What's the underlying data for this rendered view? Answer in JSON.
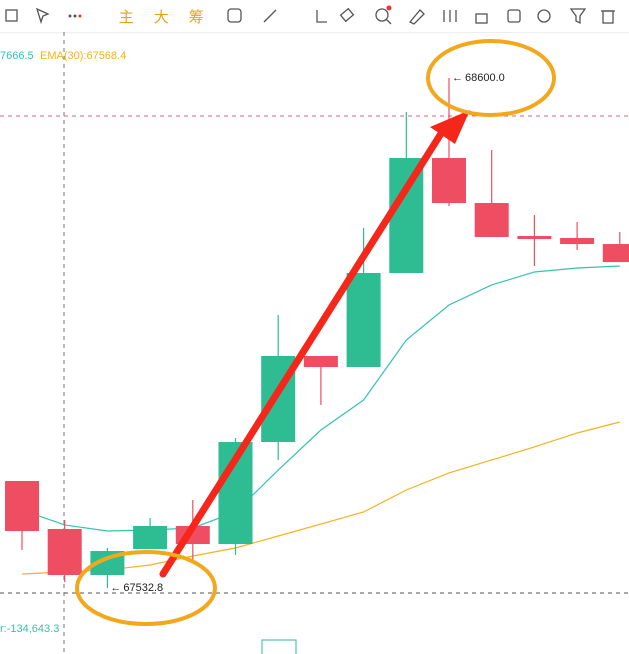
{
  "toolbar": {
    "labels": [
      "主",
      "大",
      "筹"
    ]
  },
  "chart_data": {
    "type": "candlestick",
    "categories": [
      null,
      null,
      null,
      null,
      null,
      null,
      null,
      null,
      null,
      null,
      null,
      null,
      null,
      null,
      null
    ],
    "open": [
      67756.7,
      67656.3,
      67560.0,
      67614.4,
      67662.6,
      67624.9,
      67838.3,
      68018.3,
      67995.3,
      68192.0,
      68432.6,
      68338.4,
      68269.4,
      68265.2,
      68252.6
    ],
    "high": [
      67756.7,
      67675.1,
      67616.5,
      67679.3,
      67717.0,
      67846.7,
      68104.1,
      68018.3,
      68286.1,
      68528.9,
      68600.0,
      68449.3,
      68313.3,
      68298.7,
      68277.8
    ],
    "low": [
      67612.3,
      67545.0,
      67532.8,
      67614.4,
      67591.4,
      67601.9,
      67800.7,
      67915.8,
      67995.3,
      68192.0,
      68332.2,
      68267.3,
      68206.6,
      68240.1,
      68214.9
    ],
    "close": [
      67652.1,
      67560.0,
      67610.2,
      67662.6,
      67624.9,
      67838.3,
      68018.3,
      67995.3,
      68192.0,
      68432.6,
      68338.4,
      68267.3,
      68263.1,
      68252.6,
      68214.9
    ],
    "up_color": "#2ebd93",
    "down_color": "#ef4d61",
    "series": [
      {
        "name": "7666.5",
        "color": "#36c2b0",
        "values": [
          67696.0,
          67664.7,
          67652.1,
          67654.2,
          67658.4,
          67691.9,
          67779.7,
          67863.4,
          67926.2,
          68051.8,
          68125.0,
          68166.9,
          68194.1,
          68202.4,
          68206.6
        ]
      },
      {
        "name": "EMA(30):67568.4",
        "color": "#f5b21c",
        "values": [
          67562.1,
          67566.3,
          67570.5,
          67581.0,
          67599.8,
          67616.5,
          67641.6,
          67666.7,
          67691.9,
          67737.9,
          67773.5,
          67800.7,
          67827.9,
          67857.2,
          67880.2
        ]
      }
    ],
    "high_label": "68600.0",
    "low_label": "67532.8",
    "indicator_label": "r:-134,643.3",
    "ylim": [
      67394.7,
      68696.3
    ]
  }
}
